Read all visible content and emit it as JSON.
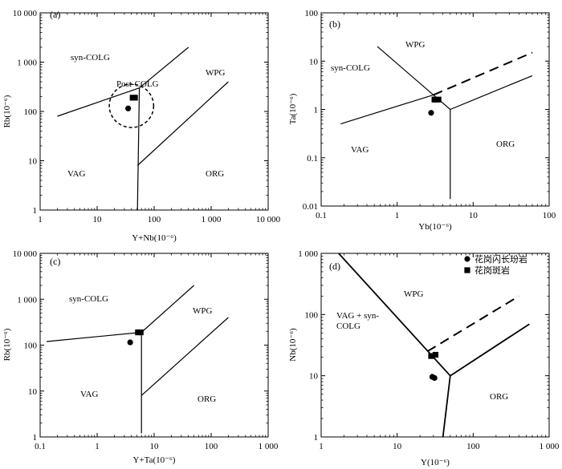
{
  "chart_data": [
    {
      "panel": "(a)",
      "type": "scatter",
      "scale": "log-log",
      "xlabel": "Y+Nb(10⁻⁶)",
      "ylabel": "Rb(10⁻⁶)",
      "xlim": [
        1,
        10000
      ],
      "ylim": [
        1,
        10000
      ],
      "xticks": [
        "1",
        "10",
        "100",
        "1 000",
        "10 000"
      ],
      "yticks": [
        "1",
        "10",
        "100",
        "1 000",
        "10 000"
      ],
      "fields": [
        "syn-COLG",
        "WPG",
        "Post-COLG",
        "VAG",
        "ORG"
      ],
      "boundaries": [
        {
          "style": "solid",
          "points": [
            [
              2,
              80
            ],
            [
              55,
              300
            ]
          ]
        },
        {
          "style": "solid",
          "points": [
            [
              55,
              300
            ],
            [
              400,
              2000
            ]
          ]
        },
        {
          "style": "solid",
          "points": [
            [
              55,
              300
            ],
            [
              51,
              1
            ]
          ]
        },
        {
          "style": "solid",
          "points": [
            [
              51,
              8
            ],
            [
              2000,
              400
            ]
          ]
        }
      ],
      "post_colg_circle": {
        "center": [
          40,
          130
        ],
        "x_factor": 2.45,
        "y_factor": 2.75
      },
      "series": [
        {
          "marker": "circle",
          "points": [
            [
              35,
              115
            ]
          ]
        },
        {
          "marker": "square",
          "points": [
            [
              42,
              190
            ],
            [
              46,
              190
            ]
          ]
        }
      ]
    },
    {
      "panel": "(b)",
      "type": "scatter",
      "scale": "log-log",
      "xlabel": "Yb(10⁻⁶)",
      "ylabel": "Ta(10⁻⁶)",
      "xlim": [
        0.1,
        100
      ],
      "ylim": [
        0.01,
        100
      ],
      "xticks": [
        "0.1",
        "1",
        "10",
        "100"
      ],
      "yticks": [
        "0.01",
        "0.1",
        "1",
        "10",
        "100"
      ],
      "fields": [
        "WPG",
        "syn-COLG",
        "VAG",
        "ORG"
      ],
      "boundaries": [
        {
          "style": "solid",
          "points": [
            [
              0.55,
              20
            ],
            [
              3,
              2
            ]
          ]
        },
        {
          "style": "solid",
          "points": [
            [
              0.18,
              0.5
            ],
            [
              3,
              2
            ]
          ]
        },
        {
          "style": "dashed",
          "points": [
            [
              3,
              2
            ],
            [
              60,
              15
            ]
          ]
        },
        {
          "style": "solid",
          "points": [
            [
              3,
              2
            ],
            [
              5,
              1
            ]
          ]
        },
        {
          "style": "solid",
          "points": [
            [
              5,
              1
            ],
            [
              5,
              0.014
            ]
          ]
        },
        {
          "style": "solid",
          "points": [
            [
              5,
              1
            ],
            [
              60,
              5
            ]
          ]
        }
      ],
      "series": [
        {
          "marker": "circle",
          "points": [
            [
              2.8,
              0.85
            ]
          ]
        },
        {
          "marker": "square",
          "points": [
            [
              3.1,
              1.6
            ],
            [
              3.5,
              1.6
            ]
          ]
        }
      ]
    },
    {
      "panel": "(c)",
      "type": "scatter",
      "scale": "log-log",
      "xlabel": "Y+Ta(10⁻⁶)",
      "ylabel": "Rb(10⁻⁶)",
      "xlim": [
        0.1,
        1000
      ],
      "ylim": [
        1,
        10000
      ],
      "xticks": [
        "0.1",
        "1",
        "10",
        "100",
        "1 000"
      ],
      "yticks": [
        "1",
        "10",
        "100",
        "1 000",
        "10 000"
      ],
      "fields": [
        "syn-COLG",
        "WPG",
        "VAG",
        "ORG"
      ],
      "boundaries": [
        {
          "style": "solid",
          "points": [
            [
              0.13,
              120
            ],
            [
              6,
              190
            ]
          ]
        },
        {
          "style": "solid",
          "points": [
            [
              6,
              190
            ],
            [
              50,
              2000
            ]
          ]
        },
        {
          "style": "solid",
          "points": [
            [
              6,
              190
            ],
            [
              6,
              1.2
            ]
          ]
        },
        {
          "style": "solid",
          "points": [
            [
              6,
              8
            ],
            [
              200,
              400
            ]
          ]
        }
      ],
      "series": [
        {
          "marker": "circle",
          "points": [
            [
              3.8,
              115
            ]
          ]
        },
        {
          "marker": "square",
          "points": [
            [
              5.2,
              190
            ],
            [
              5.8,
              190
            ]
          ]
        }
      ]
    },
    {
      "panel": "(d)",
      "type": "scatter",
      "scale": "log-log",
      "xlabel": "Y(10⁻⁶)",
      "ylabel": "Nb(10⁻⁶)",
      "xlim": [
        1,
        1000
      ],
      "ylim": [
        1,
        1000
      ],
      "xticks": [
        "1",
        "10",
        "100",
        "1 000"
      ],
      "yticks": [
        "1",
        "10",
        "100",
        "1 000"
      ],
      "fields": [
        "WPG",
        "VAG + syn-\nCOLG",
        "ORG"
      ],
      "boundaries": [
        {
          "style": "solid",
          "points": [
            [
              1.7,
              1000
            ],
            [
              50,
              10
            ]
          ]
        },
        {
          "style": "dashed",
          "points": [
            [
              25,
              25
            ],
            [
              400,
              200
            ]
          ]
        },
        {
          "style": "solid",
          "points": [
            [
              50,
              10
            ],
            [
              40,
              1
            ]
          ]
        },
        {
          "style": "solid",
          "points": [
            [
              50,
              10
            ],
            [
              550,
              70
            ]
          ]
        }
      ],
      "series": [
        {
          "name": "花岗闪长玢岩",
          "marker": "circle",
          "points": [
            [
              29,
              9.6
            ],
            [
              31,
              9.2
            ]
          ]
        },
        {
          "name": "花岗斑岩",
          "marker": "square",
          "points": [
            [
              28,
              21
            ],
            [
              32,
              22
            ]
          ]
        }
      ],
      "legend": [
        "花岗闪长玢岩",
        "花岗斑岩"
      ],
      "legend_placement": "top-right"
    }
  ]
}
